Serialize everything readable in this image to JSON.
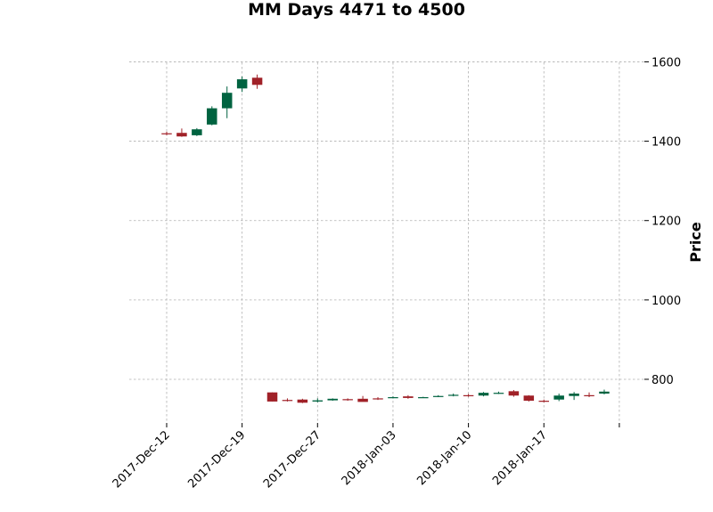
{
  "chart_data": {
    "type": "candlestick",
    "title": "MM Days 4471 to 4500",
    "ylabel": "Price",
    "xlabel": "",
    "ylim": [
      690,
      1610
    ],
    "y_ticks": [
      800,
      1000,
      1200,
      1400,
      1600
    ],
    "grid": true,
    "y_axis_side": "right",
    "colors": {
      "up": "#006340",
      "down": "#a02128",
      "grid": "#b0b0b0"
    },
    "x_tick_labels": [
      {
        "index": 0,
        "label": "2017-Dec-12"
      },
      {
        "index": 5,
        "label": "2017-Dec-19"
      },
      {
        "index": 10,
        "label": "2017-Dec-27"
      },
      {
        "index": 15,
        "label": "2018-Jan-03"
      },
      {
        "index": 20,
        "label": "2018-Jan-10"
      },
      {
        "index": 25,
        "label": "2018-Jan-17"
      },
      {
        "index": 30,
        "label": ""
      }
    ],
    "candles": [
      {
        "open": 1420,
        "high": 1424,
        "low": 1415,
        "close": 1419
      },
      {
        "open": 1421,
        "high": 1432,
        "low": 1411,
        "close": 1412
      },
      {
        "open": 1415,
        "high": 1433,
        "low": 1413,
        "close": 1430
      },
      {
        "open": 1442,
        "high": 1488,
        "low": 1440,
        "close": 1483
      },
      {
        "open": 1483,
        "high": 1538,
        "low": 1458,
        "close": 1522
      },
      {
        "open": 1533,
        "high": 1563,
        "low": 1524,
        "close": 1556
      },
      {
        "open": 1560,
        "high": 1568,
        "low": 1532,
        "close": 1542
      },
      {
        "open": 767,
        "high": 767,
        "low": 744,
        "close": 744
      },
      {
        "open": 748,
        "high": 752,
        "low": 744,
        "close": 746
      },
      {
        "open": 749,
        "high": 751,
        "low": 740,
        "close": 741
      },
      {
        "open": 744,
        "high": 752,
        "low": 742,
        "close": 747
      },
      {
        "open": 747,
        "high": 752,
        "low": 746,
        "close": 751
      },
      {
        "open": 750,
        "high": 752,
        "low": 746,
        "close": 749
      },
      {
        "open": 751,
        "high": 758,
        "low": 744,
        "close": 743
      },
      {
        "open": 752,
        "high": 755,
        "low": 748,
        "close": 751
      },
      {
        "open": 754,
        "high": 757,
        "low": 752,
        "close": 755
      },
      {
        "open": 757,
        "high": 760,
        "low": 751,
        "close": 753
      },
      {
        "open": 755,
        "high": 756,
        "low": 753,
        "close": 755
      },
      {
        "open": 756,
        "high": 760,
        "low": 755,
        "close": 758
      },
      {
        "open": 759,
        "high": 764,
        "low": 757,
        "close": 761
      },
      {
        "open": 760,
        "high": 763,
        "low": 756,
        "close": 758
      },
      {
        "open": 759,
        "high": 768,
        "low": 757,
        "close": 766
      },
      {
        "open": 765,
        "high": 769,
        "low": 763,
        "close": 766
      },
      {
        "open": 770,
        "high": 773,
        "low": 756,
        "close": 759
      },
      {
        "open": 759,
        "high": 760,
        "low": 744,
        "close": 746
      },
      {
        "open": 746,
        "high": 749,
        "low": 742,
        "close": 745
      },
      {
        "open": 749,
        "high": 764,
        "low": 745,
        "close": 759
      },
      {
        "open": 758,
        "high": 768,
        "low": 748,
        "close": 764
      },
      {
        "open": 760,
        "high": 767,
        "low": 755,
        "close": 758
      },
      {
        "open": 764,
        "high": 774,
        "low": 762,
        "close": 769
      }
    ]
  }
}
